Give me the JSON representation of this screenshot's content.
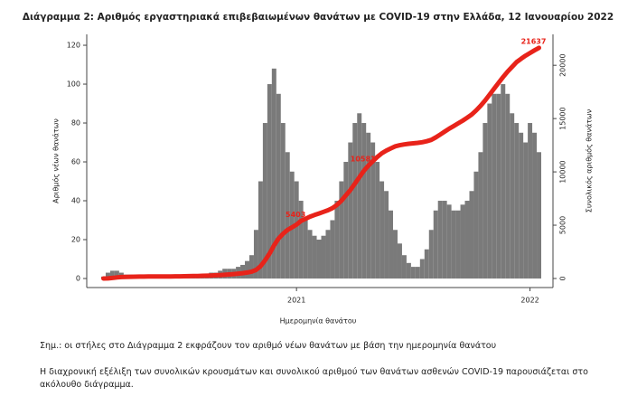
{
  "chart_data": {
    "type": "bar-line",
    "title": "Διάγραμμα 2: Αριθμός εργαστηριακά επιβεβαιωμένων θανάτων με COVID-19 στην Ελλάδα, 12 Ιανουαρίου 2022",
    "x_label": "Ημερομηνία θανάτου",
    "y_label": "Αριθμός νέων θανάτων",
    "y2_label": "Συνολικός αριθμός θανάτων",
    "categories": [
      null,
      null,
      null,
      null,
      null,
      null,
      null,
      null,
      null,
      null,
      null,
      null,
      null,
      null,
      null,
      null,
      null,
      null,
      null,
      null,
      null,
      null,
      null,
      null,
      null,
      null,
      null,
      null,
      null,
      null,
      null,
      null,
      null,
      null,
      null,
      null,
      null,
      null,
      null,
      null,
      null,
      null,
      null,
      "2021",
      null,
      null,
      null,
      null,
      null,
      null,
      null,
      null,
      null,
      null,
      null,
      null,
      null,
      null,
      null,
      null,
      null,
      null,
      null,
      null,
      null,
      null,
      null,
      null,
      null,
      null,
      null,
      null,
      null,
      null,
      null,
      null,
      null,
      null,
      null,
      null,
      null,
      null,
      null,
      null,
      null,
      null,
      null,
      null,
      null,
      null,
      null,
      null,
      null,
      null,
      null,
      "2022",
      null,
      null
    ],
    "series": [
      {
        "name": "Νέοι θάνατοι",
        "color": "#7a7a7a",
        "axis": "y",
        "values": [
          1,
          3,
          4,
          4,
          3,
          2,
          2,
          1,
          1,
          1,
          0,
          0,
          0,
          0,
          0,
          0,
          0,
          1,
          1,
          1,
          1,
          2,
          2,
          2,
          3,
          3,
          4,
          5,
          5,
          5,
          6,
          7,
          9,
          12,
          25,
          50,
          80,
          100,
          108,
          95,
          80,
          65,
          55,
          50,
          40,
          30,
          25,
          22,
          20,
          22,
          25,
          30,
          40,
          50,
          60,
          70,
          80,
          85,
          80,
          75,
          70,
          60,
          50,
          45,
          35,
          25,
          18,
          12,
          8,
          6,
          6,
          10,
          15,
          25,
          35,
          40,
          40,
          38,
          35,
          35,
          38,
          40,
          45,
          55,
          65,
          80,
          90,
          95,
          95,
          100,
          95,
          85,
          80,
          75,
          70,
          80,
          75,
          65
        ]
      },
      {
        "name": "Συνολικοί θάνατοι",
        "color": "#e8231a",
        "axis": "y2",
        "values": [
          0,
          10,
          50,
          100,
          130,
          150,
          160,
          170,
          175,
          180,
          185,
          188,
          190,
          192,
          195,
          197,
          200,
          205,
          210,
          215,
          225,
          235,
          250,
          265,
          280,
          300,
          320,
          350,
          380,
          415,
          455,
          500,
          560,
          640,
          800,
          1150,
          1700,
          2350,
          3100,
          3750,
          4200,
          4550,
          4800,
          5050,
          5403,
          5600,
          5800,
          5950,
          6100,
          6250,
          6400,
          6600,
          6900,
          7300,
          7800,
          8300,
          8900,
          9500,
          10100,
          10581,
          11000,
          11400,
          11750,
          12000,
          12200,
          12400,
          12500,
          12580,
          12640,
          12680,
          12720,
          12780,
          12870,
          13000,
          13230,
          13500,
          13780,
          14050,
          14300,
          14550,
          14800,
          15080,
          15380,
          15760,
          16200,
          16700,
          17250,
          17800,
          18350,
          18900,
          19400,
          19850,
          20300,
          20600,
          20900,
          21150,
          21400,
          21637
        ],
        "value_labels": [
          null,
          null,
          null,
          null,
          null,
          null,
          null,
          null,
          null,
          null,
          null,
          null,
          null,
          null,
          null,
          null,
          null,
          null,
          null,
          null,
          null,
          null,
          null,
          null,
          null,
          null,
          null,
          null,
          null,
          null,
          null,
          null,
          null,
          null,
          null,
          null,
          null,
          null,
          null,
          null,
          null,
          null,
          null,
          null,
          "5403",
          null,
          null,
          null,
          null,
          null,
          null,
          null,
          null,
          null,
          null,
          null,
          null,
          null,
          null,
          "10581",
          null,
          null,
          null,
          null,
          null,
          null,
          null,
          null,
          null,
          null,
          null,
          null,
          null,
          null,
          null,
          null,
          null,
          null,
          null,
          null,
          null,
          null,
          null,
          null,
          null,
          null,
          null,
          null,
          null,
          null,
          null,
          null,
          null,
          null,
          null,
          null,
          null,
          "21637"
        ]
      }
    ],
    "ylim": [
      -4.65,
      125.6
    ],
    "yticks": [
      0,
      20,
      40,
      60,
      80,
      100,
      120
    ],
    "y2lim": [
      -850,
      22900
    ],
    "y2ticks": [
      0,
      5000,
      10000,
      15000,
      20000
    ],
    "grid": false
  },
  "notes": [
    "Σημ.: οι στήλες στο Διάγραμμα 2 εκφράζουν τον αριθμό νέων θανάτων με βάση την ημερομηνία θανάτου",
    "Η διαχρονική εξέλιξη των συνολικών κρουσμάτων και συνολικού αριθμού των θανάτων ασθενών COVID-19 παρουσιάζεται στο ακόλουθο διάγραμμα."
  ]
}
